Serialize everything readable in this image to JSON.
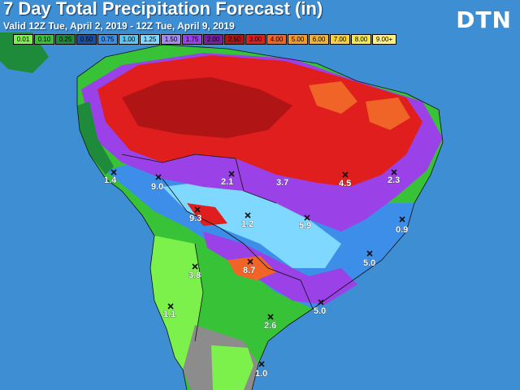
{
  "title": "7 Day Total Precipitation Forecast (in)",
  "subtitle": "Valid 12Z Tue, April 2, 2019 - 12Z Tue, April 9, 2019",
  "logo": "DTN",
  "legend": [
    {
      "label": "0.01",
      "color": "#7cf04b"
    },
    {
      "label": "0.10",
      "color": "#38c238"
    },
    {
      "label": "0.25",
      "color": "#1e8b3a"
    },
    {
      "label": "0.50",
      "color": "#1b4fa6"
    },
    {
      "label": "0.75",
      "color": "#3c8ee8"
    },
    {
      "label": "1.00",
      "color": "#5cc4f0"
    },
    {
      "label": "1.25",
      "color": "#7fd8ff"
    },
    {
      "label": "1.50",
      "color": "#a58af0"
    },
    {
      "label": "1.75",
      "color": "#9a42e8"
    },
    {
      "label": "2.00",
      "color": "#7a1ea6"
    },
    {
      "label": "2.50",
      "color": "#b01414"
    },
    {
      "label": "3.00",
      "color": "#e01e1e"
    },
    {
      "label": "4.00",
      "color": "#f06428"
    },
    {
      "label": "5.00",
      "color": "#f59a2a"
    },
    {
      "label": "6.00",
      "color": "#f0b432"
    },
    {
      "label": "7.00",
      "color": "#f5d23c"
    },
    {
      "label": "8.00",
      "color": "#f5e84a"
    },
    {
      "label": "9.00+",
      "color": "#fff27a"
    }
  ],
  "point_values": [
    "1.4",
    "9.0",
    "2.1",
    "3.7",
    "4.5",
    "2.3",
    "9.3",
    "1.2",
    "5.9",
    "0.9",
    "8.7",
    "5.0",
    "3.8",
    "5.0",
    "1.1",
    "2.6",
    "1.0"
  ]
}
